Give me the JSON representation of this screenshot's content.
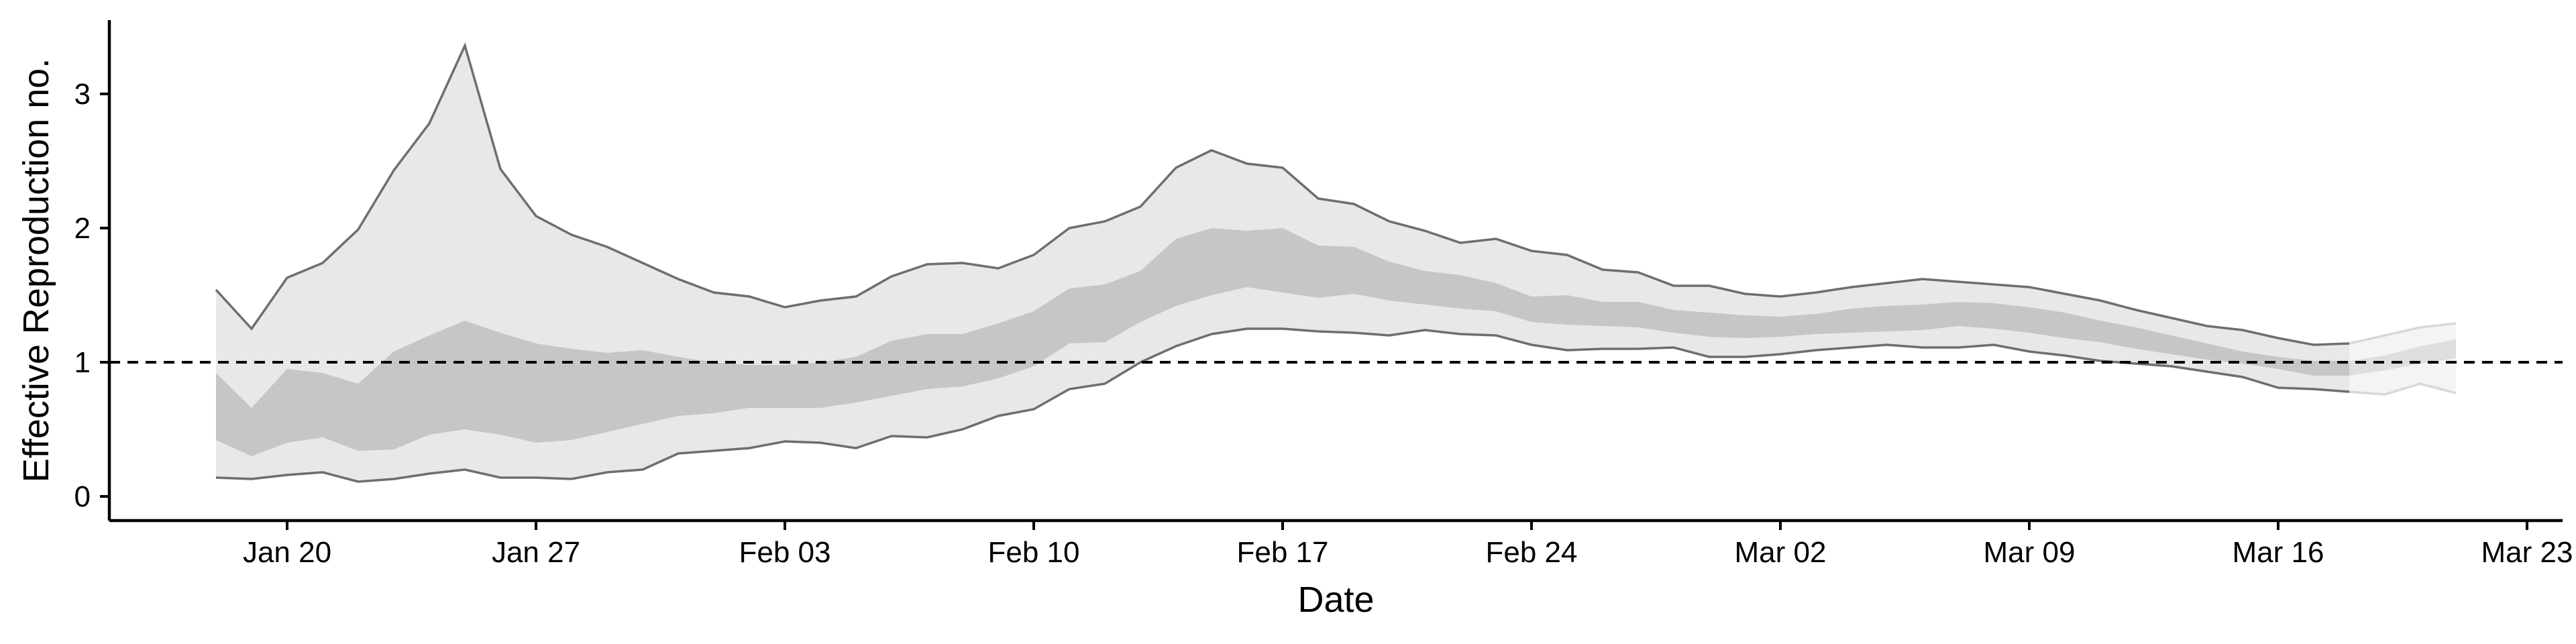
{
  "chart_data": {
    "type": "area",
    "title": "",
    "xlabel": "Date",
    "ylabel": "Effective Reproduction no.",
    "x_tick_labels": [
      "Jan 20",
      "Jan 27",
      "Feb 03",
      "Feb 10",
      "Feb 17",
      "Feb 24",
      "Mar 02",
      "Mar 09",
      "Mar 16",
      "Mar 23"
    ],
    "x_ticks": [
      "2020-01-20",
      "2020-01-27",
      "2020-02-03",
      "2020-02-10",
      "2020-02-17",
      "2020-02-24",
      "2020-03-02",
      "2020-03-09",
      "2020-03-16",
      "2020-03-23"
    ],
    "y_ticks": [
      0,
      1,
      2,
      3
    ],
    "xlim": [
      "2020-01-15",
      "2020-03-24"
    ],
    "ylim": [
      -0.18,
      3.55
    ],
    "grid": false,
    "legend": "none",
    "reference_line": {
      "y": 1,
      "style": "dashed"
    },
    "colors": {
      "outer_band": "#e8e8e8",
      "inner_band": "#c6c6c6",
      "outer_band_late": "#f4f4f4",
      "inner_band_late": "#dedede",
      "bound_line": "#6e6e6e",
      "reference_line": "#000000",
      "axis": "#000000"
    },
    "x": [
      "2020-01-18",
      "2020-01-19",
      "2020-01-20",
      "2020-01-21",
      "2020-01-22",
      "2020-01-23",
      "2020-01-24",
      "2020-01-25",
      "2020-01-26",
      "2020-01-27",
      "2020-01-28",
      "2020-01-29",
      "2020-01-30",
      "2020-01-31",
      "2020-02-01",
      "2020-02-02",
      "2020-02-03",
      "2020-02-04",
      "2020-02-05",
      "2020-02-06",
      "2020-02-07",
      "2020-02-08",
      "2020-02-09",
      "2020-02-10",
      "2020-02-11",
      "2020-02-12",
      "2020-02-13",
      "2020-02-14",
      "2020-02-15",
      "2020-02-16",
      "2020-02-17",
      "2020-02-18",
      "2020-02-19",
      "2020-02-20",
      "2020-02-21",
      "2020-02-22",
      "2020-02-23",
      "2020-02-24",
      "2020-02-25",
      "2020-02-26",
      "2020-02-27",
      "2020-02-28",
      "2020-02-29",
      "2020-03-01",
      "2020-03-02",
      "2020-03-03",
      "2020-03-04",
      "2020-03-05",
      "2020-03-06",
      "2020-03-07",
      "2020-03-08",
      "2020-03-09",
      "2020-03-10",
      "2020-03-11",
      "2020-03-12",
      "2020-03-13",
      "2020-03-14",
      "2020-03-15",
      "2020-03-16",
      "2020-03-17",
      "2020-03-18",
      "2020-03-19",
      "2020-03-20",
      "2020-03-21"
    ],
    "series": [
      {
        "name": "upper_90",
        "values": [
          1.54,
          1.25,
          1.63,
          1.74,
          1.99,
          2.43,
          2.78,
          3.36,
          2.44,
          2.09,
          1.95,
          1.86,
          1.74,
          1.62,
          1.52,
          1.49,
          1.41,
          1.46,
          1.49,
          1.64,
          1.73,
          1.74,
          1.7,
          1.8,
          2.0,
          2.05,
          2.16,
          2.45,
          2.58,
          2.48,
          2.45,
          2.22,
          2.18,
          2.05,
          1.98,
          1.89,
          1.92,
          1.83,
          1.8,
          1.69,
          1.67,
          1.57,
          1.57,
          1.51,
          1.49,
          1.52,
          1.56,
          1.59,
          1.62,
          1.6,
          1.58,
          1.56,
          1.51,
          1.46,
          1.39,
          1.33,
          1.27,
          1.24,
          1.18,
          1.13,
          1.14,
          1.2,
          1.26,
          1.29
        ]
      },
      {
        "name": "upper_50",
        "values": [
          0.92,
          0.66,
          0.95,
          0.92,
          0.84,
          1.08,
          1.2,
          1.31,
          1.22,
          1.14,
          1.1,
          1.07,
          1.09,
          1.04,
          1.0,
          0.98,
          0.98,
          1.0,
          1.04,
          1.16,
          1.21,
          1.21,
          1.29,
          1.38,
          1.55,
          1.58,
          1.68,
          1.92,
          2.0,
          1.98,
          2.0,
          1.87,
          1.86,
          1.75,
          1.68,
          1.65,
          1.59,
          1.49,
          1.5,
          1.45,
          1.45,
          1.39,
          1.37,
          1.35,
          1.34,
          1.36,
          1.4,
          1.42,
          1.43,
          1.45,
          1.44,
          1.41,
          1.37,
          1.31,
          1.26,
          1.2,
          1.14,
          1.08,
          1.04,
          1.01,
          1.01,
          1.05,
          1.12,
          1.17
        ]
      },
      {
        "name": "lower_50",
        "values": [
          0.42,
          0.3,
          0.4,
          0.44,
          0.34,
          0.35,
          0.46,
          0.5,
          0.46,
          0.4,
          0.42,
          0.48,
          0.54,
          0.6,
          0.62,
          0.66,
          0.66,
          0.66,
          0.7,
          0.75,
          0.8,
          0.82,
          0.88,
          0.97,
          1.14,
          1.15,
          1.3,
          1.42,
          1.5,
          1.56,
          1.52,
          1.48,
          1.51,
          1.46,
          1.43,
          1.4,
          1.38,
          1.3,
          1.28,
          1.27,
          1.26,
          1.22,
          1.19,
          1.18,
          1.19,
          1.21,
          1.22,
          1.23,
          1.24,
          1.27,
          1.25,
          1.22,
          1.18,
          1.15,
          1.1,
          1.06,
          1.02,
          0.99,
          0.95,
          0.9,
          0.9,
          0.94,
          0.99,
          1.03
        ]
      },
      {
        "name": "lower_90",
        "values": [
          0.14,
          0.13,
          0.16,
          0.18,
          0.11,
          0.13,
          0.17,
          0.2,
          0.14,
          0.14,
          0.13,
          0.18,
          0.2,
          0.32,
          0.34,
          0.36,
          0.41,
          0.4,
          0.36,
          0.45,
          0.44,
          0.5,
          0.6,
          0.65,
          0.8,
          0.84,
          1.0,
          1.12,
          1.21,
          1.25,
          1.25,
          1.23,
          1.22,
          1.2,
          1.24,
          1.21,
          1.2,
          1.13,
          1.09,
          1.1,
          1.1,
          1.11,
          1.04,
          1.04,
          1.06,
          1.09,
          1.11,
          1.13,
          1.11,
          1.11,
          1.13,
          1.08,
          1.05,
          1.01,
          0.99,
          0.97,
          0.93,
          0.89,
          0.81,
          0.8,
          0.78,
          0.76,
          0.84,
          0.77
        ]
      }
    ],
    "late_estimate_from": "2020-03-18"
  }
}
